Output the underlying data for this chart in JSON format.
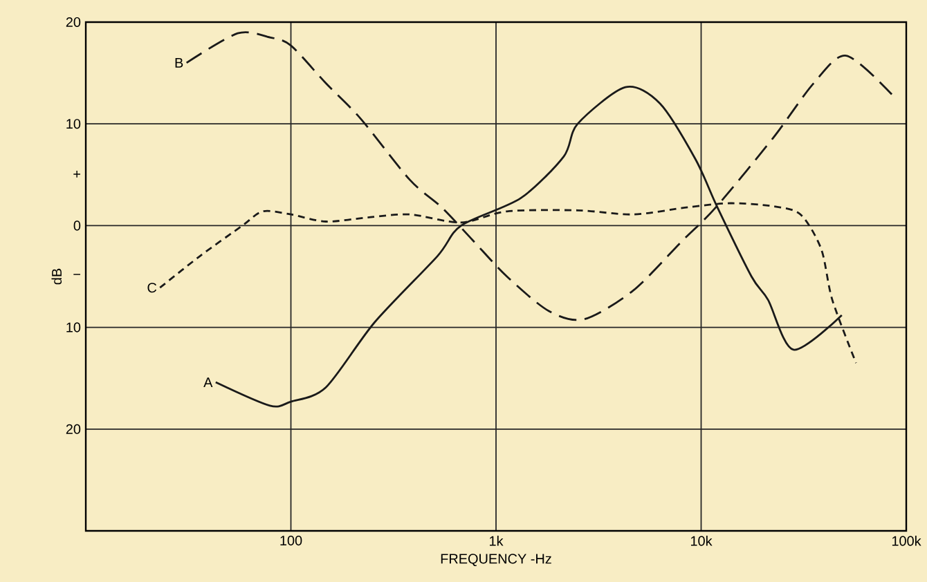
{
  "chart_data": {
    "type": "line",
    "xlabel": "FREQUENCY -Hz",
    "ylabel": "dB",
    "log": "x",
    "grid": true,
    "legend": false,
    "marker": "none",
    "xlim": [
      10,
      100000
    ],
    "ylim": [
      -30,
      20
    ],
    "xticks": [
      {
        "value": 100,
        "label": "100"
      },
      {
        "value": 1000,
        "label": "1k"
      },
      {
        "value": 10000,
        "label": "10k"
      },
      {
        "value": 100000,
        "label": "100k"
      }
    ],
    "yticks": [
      {
        "value": 20,
        "label": "20"
      },
      {
        "value": 10,
        "label": "10"
      },
      {
        "value": 5,
        "label": "+"
      },
      {
        "value": 0,
        "label": "0"
      },
      {
        "value": -5,
        "label": "−"
      },
      {
        "value": -10,
        "label": "10"
      },
      {
        "value": -20,
        "label": "20"
      }
    ],
    "series": [
      {
        "name": "A",
        "color": "#1a1a1a",
        "line_style": "solid",
        "x": [
          43,
          79,
          100,
          148,
          256,
          518,
          676,
          1320,
          2140,
          2500,
          4270,
          6300,
          9400,
          12000,
          17600,
          21200,
          28200,
          48500
        ],
        "values": [
          -15.4,
          -17.7,
          -17.3,
          -15.9,
          -9.5,
          -3,
          0,
          2.7,
          6.8,
          10,
          13.6,
          12,
          6.5,
          1.8,
          -5,
          -7.3,
          -12.2,
          -8.8
        ]
      },
      {
        "name": "B",
        "color": "#1a1a1a",
        "line_style": "long dashed",
        "x": [
          31,
          55,
          79,
          100,
          148,
          219,
          380,
          543,
          767,
          1130,
          1810,
          2690,
          4650,
          8000,
          11800,
          22400,
          35400,
          51000,
          85000
        ],
        "values": [
          16,
          18.9,
          18.5,
          17.7,
          14,
          10.5,
          4.5,
          1.8,
          -1.4,
          -5,
          -8.4,
          -9.2,
          -6.4,
          -1.6,
          1.8,
          8.6,
          14,
          16.7,
          12.9
        ]
      },
      {
        "name": "C",
        "color": "#1a1a1a",
        "line_style": "dashed",
        "x": [
          23,
          36,
          58,
          73,
          100,
          148,
          237,
          380,
          676,
          1130,
          2500,
          4650,
          8600,
          13900,
          22400,
          30500,
          38500,
          43600,
          56900
        ],
        "values": [
          -6.1,
          -3,
          0,
          1.4,
          1.1,
          0.4,
          0.8,
          1.1,
          0.3,
          1.4,
          1.5,
          1.1,
          1.8,
          2.2,
          1.9,
          1.1,
          -2.3,
          -7.3,
          -13.5
        ]
      }
    ]
  }
}
